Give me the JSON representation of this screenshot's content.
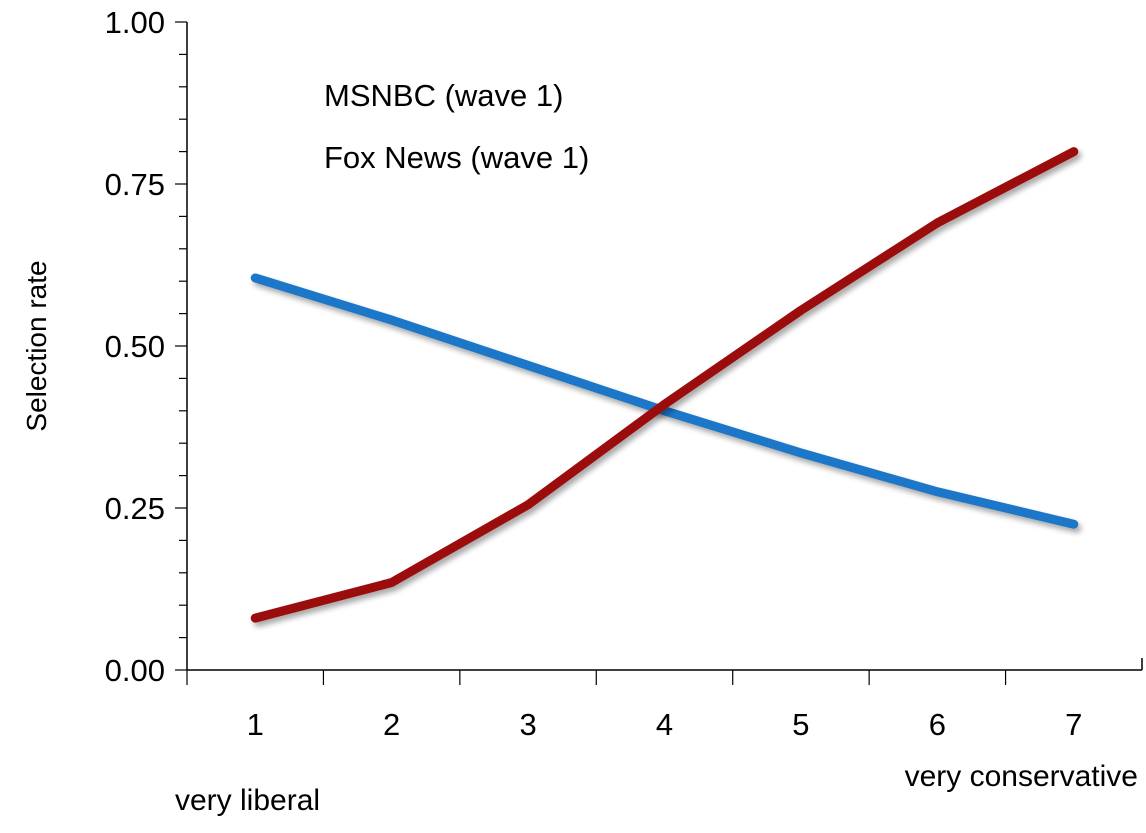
{
  "chart_data": {
    "type": "line",
    "title": "",
    "xlabel": "",
    "ylabel": "Selection rate",
    "x": [
      1,
      2,
      3,
      4,
      5,
      6,
      7
    ],
    "x_tick_labels": [
      "1",
      "2",
      "3",
      "4",
      "5",
      "6",
      "7"
    ],
    "y_tick_labels": [
      "0.00",
      "0.25",
      "0.50",
      "0.75",
      "1.00"
    ],
    "xlim": [
      0.5,
      7.5
    ],
    "ylim": [
      0,
      1
    ],
    "grid": false,
    "legend_position": "top-left",
    "series": [
      {
        "name": "MSNBC (wave 1)",
        "color": "#1f77c8",
        "values": [
          0.605,
          0.54,
          0.47,
          0.4,
          0.335,
          0.275,
          0.225
        ]
      },
      {
        "name": "Fox News (wave 1)",
        "color": "#9b1010",
        "values": [
          0.08,
          0.135,
          0.255,
          0.41,
          0.555,
          0.69,
          0.8
        ]
      }
    ],
    "annotations": {
      "left": "very liberal",
      "right": "very conservative"
    }
  }
}
